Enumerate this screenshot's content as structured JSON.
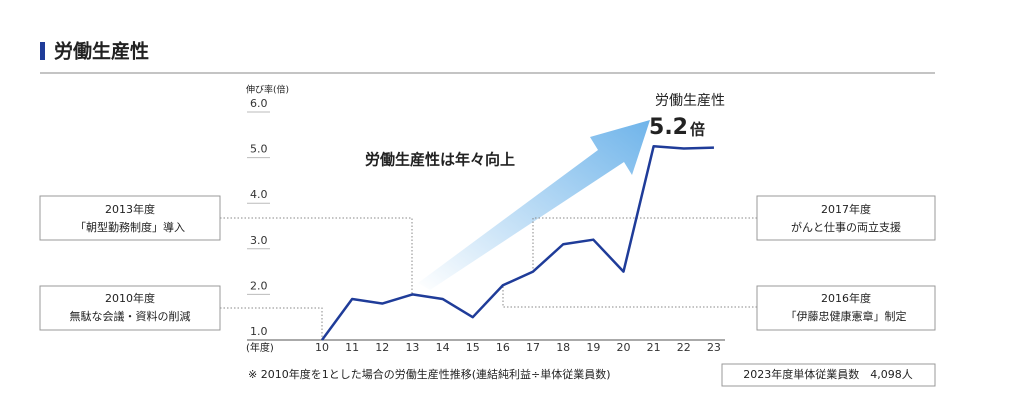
{
  "chart_data": {
    "type": "line",
    "title": "労働生産性",
    "y_label": "伸び率(倍)",
    "x_label": "(年度)",
    "categories": [
      "10",
      "11",
      "12",
      "13",
      "14",
      "15",
      "16",
      "17",
      "18",
      "19",
      "20",
      "21",
      "22",
      "23"
    ],
    "values": [
      1.0,
      1.9,
      1.8,
      2.0,
      1.9,
      1.5,
      2.2,
      2.5,
      3.1,
      3.2,
      2.5,
      5.25,
      5.2,
      5.22
    ],
    "color": "#1f3c99",
    "ylim": [
      1,
      6
    ],
    "yticks": [
      {
        "value": 1,
        "label": "1.0"
      },
      {
        "value": 2,
        "label": "2.0"
      },
      {
        "value": 3,
        "label": "3.0"
      },
      {
        "value": 4,
        "label": "4.0"
      },
      {
        "value": 5,
        "label": "5.0"
      },
      {
        "value": 6,
        "label": "6.0"
      }
    ],
    "slogan": "労働生産性は年々向上",
    "headline": "労働生産性",
    "headline_value": "5.2",
    "headline_unit": "倍",
    "annotations": [
      {
        "year": "2013年度",
        "text": "「朝型勤務制度」導入"
      },
      {
        "year": "2010年度",
        "text": "無駄な会議・資料の削減"
      },
      {
        "year": "2017年度",
        "text": "がんと仕事の両立支援"
      },
      {
        "year": "2016年度",
        "text": "「伊藤忠健康憲章」制定"
      }
    ],
    "note": "※ 2010年度を1とした場合の労働生産性推移(連結純利益÷単体従業員数)",
    "employees": "2023年度単体従業員数　4,098人"
  }
}
